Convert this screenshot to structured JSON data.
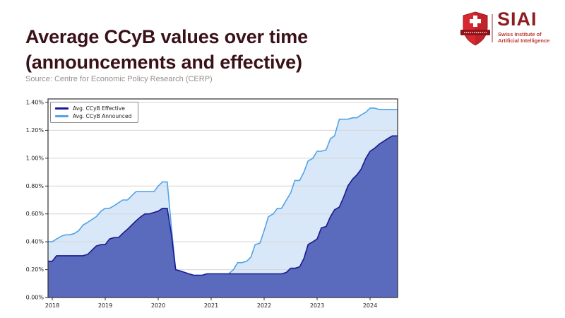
{
  "header": {
    "title_line1": "Average CCyB values over time",
    "title_line2": "(announcements and effective)",
    "source": "Source: Centre for Economic Policy Research (CERP)",
    "title_color": "#3a1118",
    "source_color": "#988f8f"
  },
  "logo": {
    "acronym": "SIAI",
    "subtitle_line1": "Swiss Institute of",
    "subtitle_line2": "Artificial Intelligence",
    "shield_color": "#d7282f",
    "banner_color": "#8f1418",
    "acronym_color": "#8e1d22",
    "subtitle_color": "#c03a31"
  },
  "chart_data": {
    "type": "area",
    "title": "Average CCyB values over time (announcements and effective)",
    "xlabel": "",
    "ylabel": "",
    "grid": true,
    "legend_position": "upper-left",
    "ylim": [
      0,
      1.4
    ],
    "ytick_values": [
      0,
      0.2,
      0.4,
      0.6,
      0.8,
      1.0,
      1.2,
      1.4
    ],
    "ytick_labels": [
      "0.00%",
      "0.20%",
      "0.40%",
      "0.60%",
      "0.80%",
      "1.00%",
      "1.20%",
      "1.40%"
    ],
    "xticks": [
      2018,
      2019,
      2020,
      2021,
      2022,
      2023,
      2024
    ],
    "x": [
      2018.0,
      2018.08,
      2018.17,
      2018.25,
      2018.33,
      2018.42,
      2018.5,
      2018.58,
      2018.67,
      2018.75,
      2018.83,
      2018.92,
      2019.0,
      2019.08,
      2019.17,
      2019.25,
      2019.33,
      2019.42,
      2019.5,
      2019.58,
      2019.67,
      2019.75,
      2019.83,
      2019.92,
      2020.0,
      2020.08,
      2020.17,
      2020.25,
      2020.33,
      2020.42,
      2020.5,
      2020.58,
      2020.67,
      2020.75,
      2020.83,
      2020.92,
      2021.0,
      2021.08,
      2021.17,
      2021.25,
      2021.33,
      2021.42,
      2021.5,
      2021.58,
      2021.67,
      2021.75,
      2021.83,
      2021.92,
      2022.0,
      2022.08,
      2022.17,
      2022.25,
      2022.33,
      2022.42,
      2022.5,
      2022.58,
      2022.67,
      2022.75,
      2022.83,
      2022.92,
      2023.0,
      2023.08,
      2023.17,
      2023.25,
      2023.33,
      2023.42,
      2023.5,
      2023.58,
      2023.67,
      2023.75,
      2023.83,
      2023.92,
      2024.0,
      2024.08,
      2024.17,
      2024.25,
      2024.33,
      2024.42
    ],
    "series": [
      {
        "name": "Avg. CCyB Effective",
        "color": "#1b1b8f",
        "fill": "#5a6abd",
        "unit": "%",
        "values": [
          0.26,
          0.3,
          0.3,
          0.3,
          0.3,
          0.3,
          0.3,
          0.3,
          0.31,
          0.34,
          0.37,
          0.38,
          0.38,
          0.42,
          0.43,
          0.43,
          0.46,
          0.49,
          0.52,
          0.55,
          0.58,
          0.6,
          0.6,
          0.61,
          0.62,
          0.64,
          0.64,
          0.45,
          0.2,
          0.19,
          0.18,
          0.17,
          0.16,
          0.16,
          0.16,
          0.17,
          0.17,
          0.17,
          0.17,
          0.17,
          0.17,
          0.17,
          0.17,
          0.17,
          0.17,
          0.17,
          0.17,
          0.17,
          0.17,
          0.17,
          0.17,
          0.17,
          0.17,
          0.18,
          0.21,
          0.21,
          0.22,
          0.28,
          0.38,
          0.4,
          0.42,
          0.5,
          0.51,
          0.58,
          0.63,
          0.65,
          0.72,
          0.8,
          0.85,
          0.88,
          0.92,
          1.0,
          1.05,
          1.07,
          1.1,
          1.12,
          1.14,
          1.16
        ]
      },
      {
        "name": "Avg. CCyB Announced",
        "color": "#52a2e8",
        "fill": "#d9e8f8",
        "unit": "%",
        "values": [
          0.4,
          0.42,
          0.44,
          0.45,
          0.45,
          0.46,
          0.48,
          0.52,
          0.54,
          0.56,
          0.58,
          0.62,
          0.64,
          0.64,
          0.66,
          0.68,
          0.7,
          0.7,
          0.73,
          0.76,
          0.76,
          0.76,
          0.76,
          0.76,
          0.8,
          0.83,
          0.83,
          0.5,
          0.2,
          0.19,
          0.18,
          0.17,
          0.16,
          0.16,
          0.16,
          0.17,
          0.17,
          0.17,
          0.17,
          0.17,
          0.17,
          0.2,
          0.25,
          0.25,
          0.26,
          0.29,
          0.38,
          0.39,
          0.48,
          0.58,
          0.6,
          0.64,
          0.64,
          0.7,
          0.75,
          0.84,
          0.84,
          0.9,
          0.98,
          1.0,
          1.05,
          1.05,
          1.06,
          1.14,
          1.16,
          1.28,
          1.28,
          1.28,
          1.29,
          1.29,
          1.31,
          1.33,
          1.36,
          1.36,
          1.35,
          1.35,
          1.35,
          1.35
        ]
      }
    ]
  }
}
